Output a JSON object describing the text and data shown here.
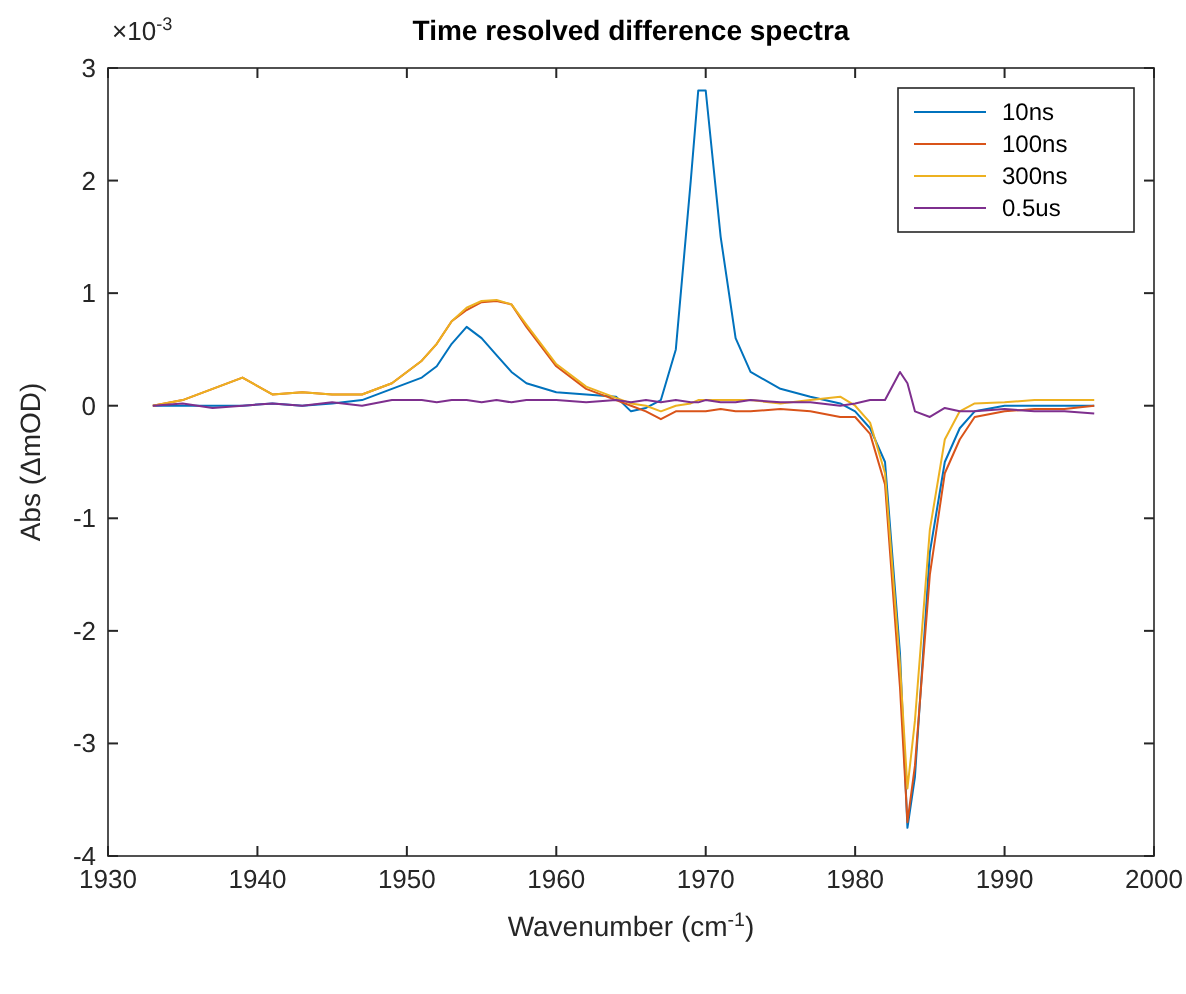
{
  "chart_data": {
    "type": "line",
    "title": "Time resolved difference spectra",
    "xlabel": "Wavenumber (cm$^{-1}$)",
    "ylabel": "Abs (ΔmOD)",
    "annotations": [
      "×10$^{-3}$"
    ],
    "x": [
      1933,
      1935,
      1937,
      1939,
      1941,
      1943,
      1945,
      1947,
      1949,
      1951,
      1952,
      1953,
      1954,
      1955,
      1956,
      1957,
      1958,
      1960,
      1962,
      1964,
      1965,
      1966,
      1967,
      1968,
      1969,
      1969.5,
      1970,
      1971,
      1972,
      1973,
      1975,
      1977,
      1979,
      1980,
      1981,
      1982,
      1983,
      1983.5,
      1984,
      1985,
      1986,
      1987,
      1988,
      1990,
      1992,
      1994,
      1996
    ],
    "series": [
      {
        "name": "10ns",
        "color": "#0072bd",
        "values": [
          0,
          0,
          0,
          0,
          0.02,
          0,
          0.02,
          0.05,
          0.15,
          0.25,
          0.35,
          0.55,
          0.7,
          0.6,
          0.45,
          0.3,
          0.2,
          0.12,
          0.1,
          0.08,
          -0.05,
          -0.02,
          0.05,
          0.5,
          2.0,
          2.8,
          2.8,
          1.5,
          0.6,
          0.3,
          0.15,
          0.08,
          0.02,
          -0.05,
          -0.2,
          -0.5,
          -2.2,
          -3.75,
          -3.3,
          -1.3,
          -0.5,
          -0.2,
          -0.05,
          0,
          0,
          0,
          0
        ]
      },
      {
        "name": "100ns",
        "color": "#d95319",
        "values": [
          0,
          0.05,
          0.15,
          0.25,
          0.1,
          0.12,
          0.1,
          0.1,
          0.2,
          0.4,
          0.55,
          0.75,
          0.85,
          0.92,
          0.93,
          0.9,
          0.7,
          0.35,
          0.15,
          0.05,
          0,
          -0.05,
          -0.12,
          -0.05,
          -0.05,
          -0.05,
          -0.05,
          -0.03,
          -0.05,
          -0.05,
          -0.03,
          -0.05,
          -0.1,
          -0.1,
          -0.25,
          -0.7,
          -2.5,
          -3.7,
          -3.2,
          -1.5,
          -0.6,
          -0.3,
          -0.1,
          -0.05,
          -0.03,
          -0.03,
          0
        ]
      },
      {
        "name": "300ns",
        "color": "#edb120",
        "values": [
          0,
          0.05,
          0.15,
          0.25,
          0.1,
          0.12,
          0.1,
          0.1,
          0.2,
          0.4,
          0.55,
          0.75,
          0.87,
          0.93,
          0.94,
          0.9,
          0.72,
          0.37,
          0.17,
          0.07,
          0.02,
          0,
          -0.05,
          0,
          0.02,
          0.05,
          0.05,
          0.05,
          0.05,
          0.05,
          0.02,
          0.05,
          0.08,
          0,
          -0.15,
          -0.6,
          -2.3,
          -3.4,
          -2.8,
          -1.1,
          -0.3,
          -0.05,
          0.02,
          0.03,
          0.05,
          0.05,
          0.05
        ]
      },
      {
        "name": "0.5us",
        "color": "#7e2f8e",
        "values": [
          0,
          0.02,
          -0.02,
          0,
          0.02,
          0,
          0.03,
          0,
          0.05,
          0.05,
          0.03,
          0.05,
          0.05,
          0.03,
          0.05,
          0.03,
          0.05,
          0.05,
          0.03,
          0.05,
          0.03,
          0.05,
          0.03,
          0.05,
          0.03,
          0.03,
          0.05,
          0.03,
          0.03,
          0.05,
          0.03,
          0.03,
          0,
          0.02,
          0.05,
          0.05,
          0.3,
          0.2,
          -0.05,
          -0.1,
          -0.02,
          -0.05,
          -0.05,
          -0.03,
          -0.05,
          -0.05,
          -0.07
        ]
      }
    ],
    "xlim": [
      1930,
      2000
    ],
    "xticks": [
      1930,
      1940,
      1950,
      1960,
      1970,
      1980,
      1990,
      2000
    ],
    "ylim": [
      -4,
      3
    ],
    "yticks": [
      -4,
      -3,
      -2,
      -1,
      0,
      1,
      2,
      3
    ],
    "legend": "top right",
    "grid": false,
    "marker": "none",
    "line_style": "solid"
  }
}
